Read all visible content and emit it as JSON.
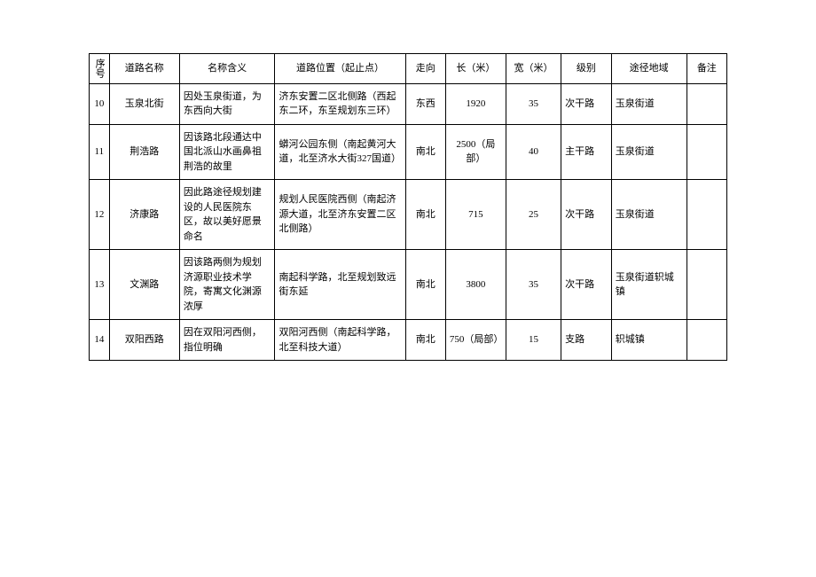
{
  "table": {
    "columns": [
      "序号",
      "道路名称",
      "名称含义",
      "道路位置（起止点）",
      "走向",
      "长（米）",
      "宽（米）",
      "级别",
      "途径地域",
      "备注"
    ],
    "rows": [
      {
        "seq": "10",
        "name": "玉泉北街",
        "meaning": "因处玉泉街道，为东西向大街",
        "location": "济东安置二区北侧路（西起东二环，东至规划东三环）",
        "direction": "东西",
        "length": "1920",
        "width": "35",
        "level": "次干路",
        "area": "玉泉街道",
        "remark": ""
      },
      {
        "seq": "11",
        "name": "荆浩路",
        "meaning": "因该路北段通达中国北派山水画鼻祖荆浩的故里",
        "location": "蟒河公园东侧（南起黄河大道，北至济水大街327国道）",
        "direction": "南北",
        "length": "2500（局部）",
        "width": "40",
        "level": "主干路",
        "area": "玉泉街道",
        "remark": ""
      },
      {
        "seq": "12",
        "name": "济康路",
        "meaning": "因此路途径规划建设的人民医院东区，故以美好愿景命名",
        "location": "规划人民医院西侧（南起济源大道，北至济东安置二区北侧路）",
        "direction": "南北",
        "length": "715",
        "width": "25",
        "level": "次干路",
        "area": "玉泉街道",
        "remark": ""
      },
      {
        "seq": "13",
        "name": "文渊路",
        "meaning": "因该路两侧为规划济源职业技术学院，寄寓文化渊源浓厚",
        "location": "南起科学路，北至规划致远街东延",
        "direction": "南北",
        "length": "3800",
        "width": "35",
        "level": "次干路",
        "area": "玉泉街道轵城镇",
        "remark": ""
      },
      {
        "seq": "14",
        "name": "双阳西路",
        "meaning": "因在双阳河西侧，指位明确",
        "location": "双阳河西侧（南起科学路，北至科技大道）",
        "direction": "南北",
        "length": "750（局部）",
        "width": "15",
        "level": "支路",
        "area": "轵城镇",
        "remark": ""
      }
    ]
  }
}
